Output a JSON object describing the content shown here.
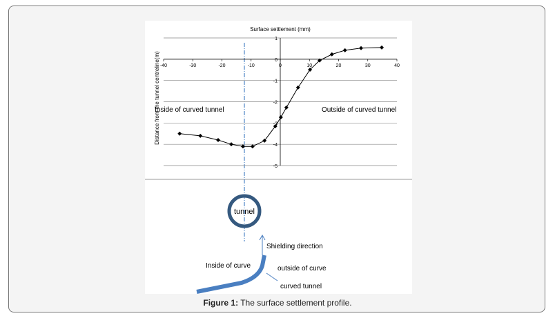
{
  "chart_data": {
    "type": "line",
    "title": "Surface settlement (mm)",
    "y_label": "Distance from the tunnel centreline(m)",
    "x": [
      -34.5,
      -27.4,
      -21.3,
      -16.8,
      -12.8,
      -9.5,
      -5.4,
      -1.7,
      0.2,
      2.1,
      6.1,
      10.2,
      13.5,
      17.7,
      22.2,
      27.7,
      34.8
    ],
    "series": [
      {
        "color": "#000000",
        "values": [
          -3.5,
          -3.6,
          -3.8,
          -4.0,
          -4.1,
          -4.1,
          -3.83,
          -3.15,
          -2.73,
          -2.27,
          -1.33,
          -0.49,
          -0.06,
          0.23,
          0.42,
          0.52,
          0.55
        ]
      }
    ],
    "xlim": [
      -40,
      40
    ],
    "xticks": [
      -40,
      -30,
      -20,
      -10,
      0,
      10,
      20,
      30,
      40
    ],
    "ylim": [
      -5,
      1
    ],
    "yticks": [
      1,
      0,
      -1,
      -2,
      -3,
      -4,
      -5
    ],
    "grid": true,
    "annotations": [
      "Inside of curved tunnel",
      "Outside of curved tunnel"
    ]
  },
  "diagram": {
    "tunnel": "tunnel",
    "shielding": "Shielding direction",
    "inside": "Inside of curve",
    "outside": "outside of curve",
    "curved": "curved tunnel"
  },
  "caption": {
    "label": "Figure 1:",
    "text": "The surface settlement profile."
  }
}
